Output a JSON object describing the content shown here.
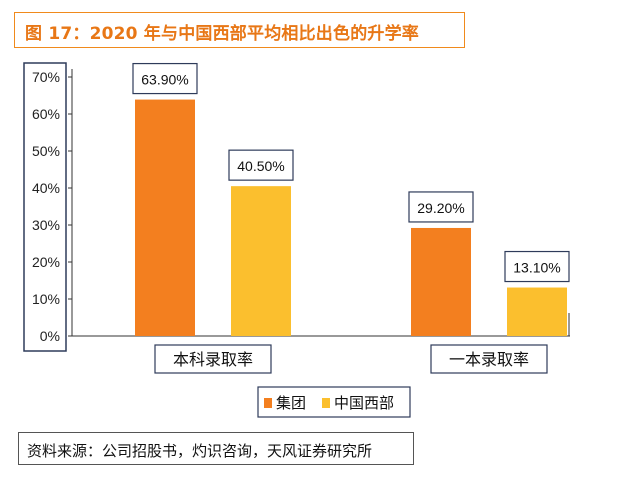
{
  "title": "图 17：2020 年与中国西部平均相比出色的升学率",
  "source": "资料来源：公司招股书，灼识咨询，天风证券研究所",
  "colors": {
    "accent": "#e87716",
    "series1": "#f37f1f",
    "series2": "#fbbf2e"
  },
  "chart_data": {
    "type": "bar",
    "categories": [
      "本科录取率",
      "一本录取率"
    ],
    "series": [
      {
        "name": "集团",
        "values": [
          63.9,
          29.2
        ],
        "labels": [
          "63.90%",
          "29.20%"
        ]
      },
      {
        "name": "中国西部",
        "values": [
          40.5,
          13.1
        ],
        "labels": [
          "40.50%",
          "13.10%"
        ]
      }
    ],
    "ylim": [
      0,
      70
    ],
    "yticks": [
      "0%",
      "10%",
      "20%",
      "30%",
      "40%",
      "50%",
      "60%",
      "70%"
    ],
    "legend": [
      "集团",
      "中国西部"
    ],
    "legend_position": "bottom",
    "grid": false,
    "xlabel": "",
    "ylabel": ""
  }
}
